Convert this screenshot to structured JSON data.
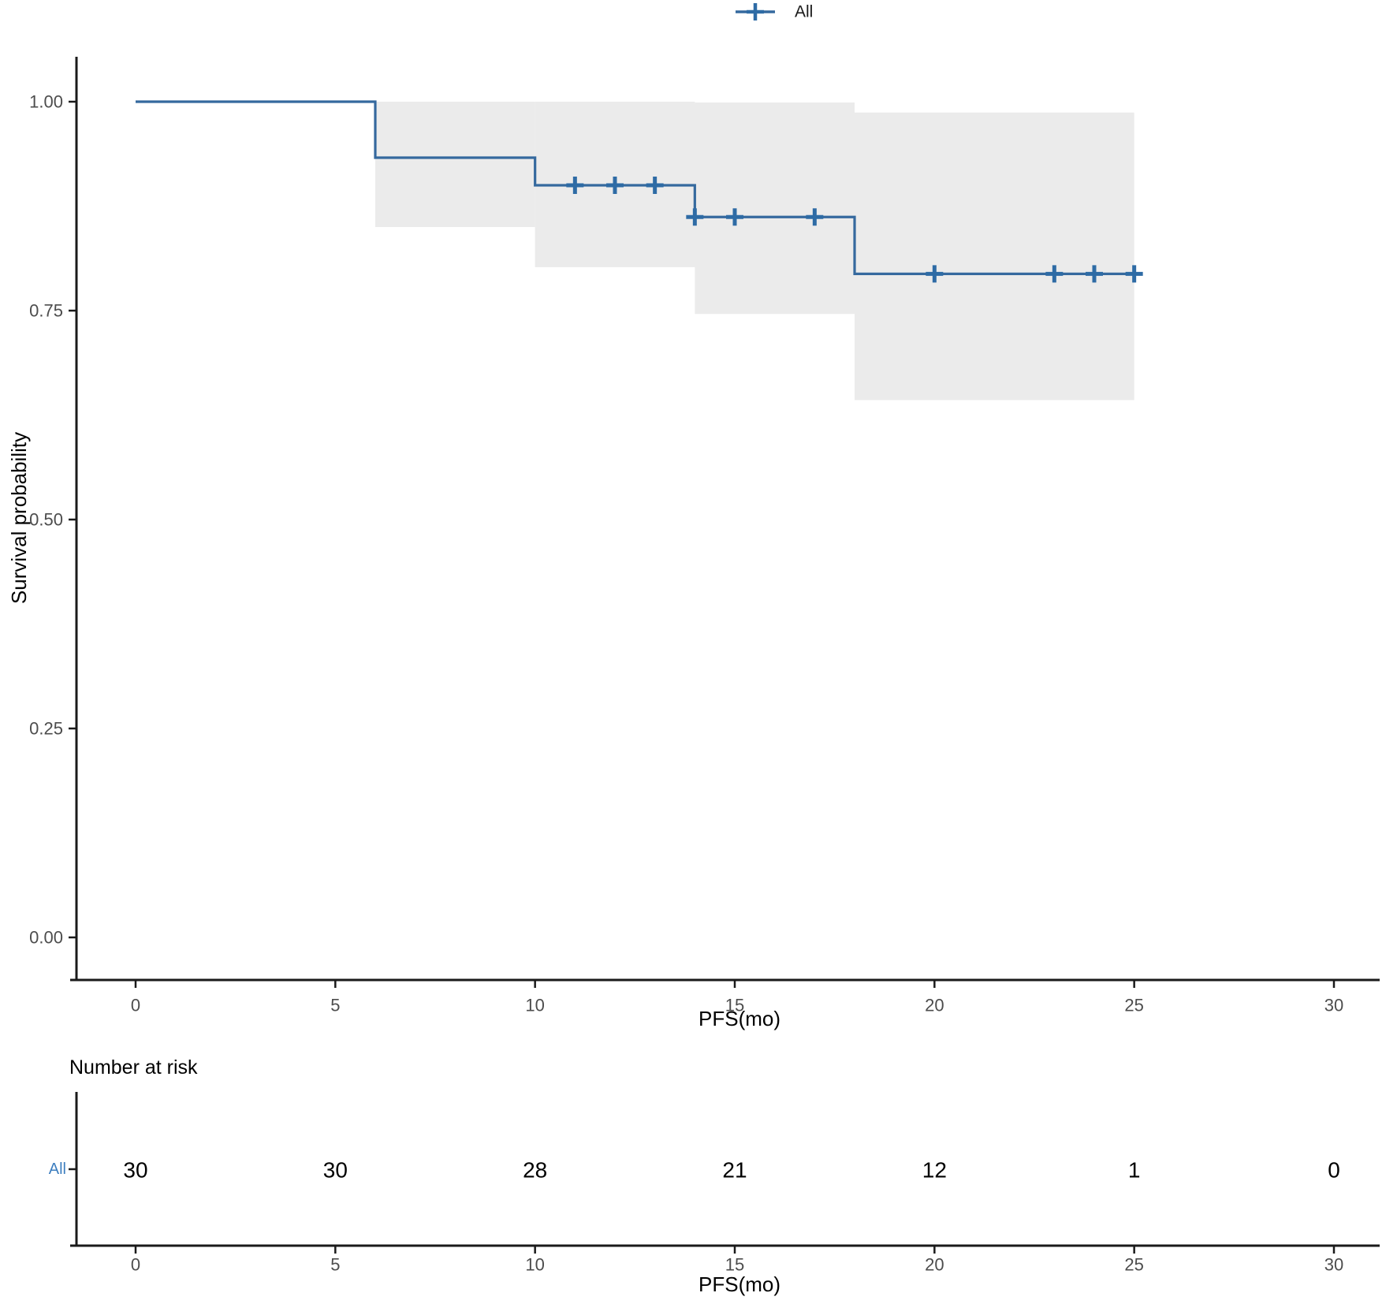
{
  "legend": {
    "label": "All"
  },
  "axes": {
    "x_title": "PFS(mo)",
    "y_title": "Survival probability",
    "y_tick_labels": [
      "0.00",
      "0.25",
      "0.50",
      "0.75",
      "1.00"
    ],
    "x_tick_labels": [
      "0",
      "5",
      "10",
      "15",
      "20",
      "25",
      "30"
    ]
  },
  "risk_section": {
    "heading": "Number at risk",
    "row_label": "All",
    "x_title": "PFS(mo)"
  },
  "colors": {
    "curve": "#35699e",
    "censor": "#2e6ba5",
    "band": "#ebebeb",
    "tick_label": "#4d4d4d",
    "axis_line": "#1a1a1a",
    "risk_row_label": "#3d7ebf",
    "title_text": "#000000"
  },
  "chart_data": {
    "type": "km_survival_step",
    "title": "",
    "xlabel": "PFS(mo)",
    "ylabel": "Survival probability",
    "xlim": [
      0,
      30
    ],
    "ylim": [
      0,
      1
    ],
    "x_ticks": [
      0,
      5,
      10,
      15,
      20,
      25,
      30
    ],
    "y_ticks": [
      0,
      0.25,
      0.5,
      0.75,
      1.0
    ],
    "grid": false,
    "legend_position": "top",
    "series": [
      {
        "name": "All",
        "color": "#35699e",
        "steps": [
          [
            0,
            1.0
          ],
          [
            6,
            0.933
          ],
          [
            10,
            0.9
          ],
          [
            14,
            0.862
          ],
          [
            18,
            0.794
          ]
        ],
        "end_time": 25,
        "censor_points": [
          [
            11,
            0.9
          ],
          [
            12,
            0.9
          ],
          [
            13,
            0.9
          ],
          [
            14,
            0.862
          ],
          [
            15,
            0.862
          ],
          [
            17,
            0.862
          ],
          [
            20,
            0.794
          ],
          [
            23,
            0.794
          ],
          [
            24,
            0.794
          ],
          [
            25,
            0.794
          ]
        ],
        "confidence_band": [
          {
            "t_start": 6,
            "t_end": 10,
            "lower": 0.85,
            "upper": 1.0
          },
          {
            "t_start": 10,
            "t_end": 14,
            "lower": 0.802,
            "upper": 1.0
          },
          {
            "t_start": 14,
            "t_end": 18,
            "lower": 0.746,
            "upper": 0.999
          },
          {
            "t_start": 18,
            "t_end": 25,
            "lower": 0.643,
            "upper": 0.987
          }
        ],
        "band_color": "#ebebeb"
      }
    ],
    "risk_table": {
      "title": "Number at risk",
      "times": [
        0,
        5,
        10,
        15,
        20,
        25,
        30
      ],
      "rows": [
        {
          "label": "All",
          "color": "#3d7ebf",
          "counts": [
            30,
            30,
            28,
            21,
            12,
            1,
            0
          ]
        }
      ]
    }
  }
}
